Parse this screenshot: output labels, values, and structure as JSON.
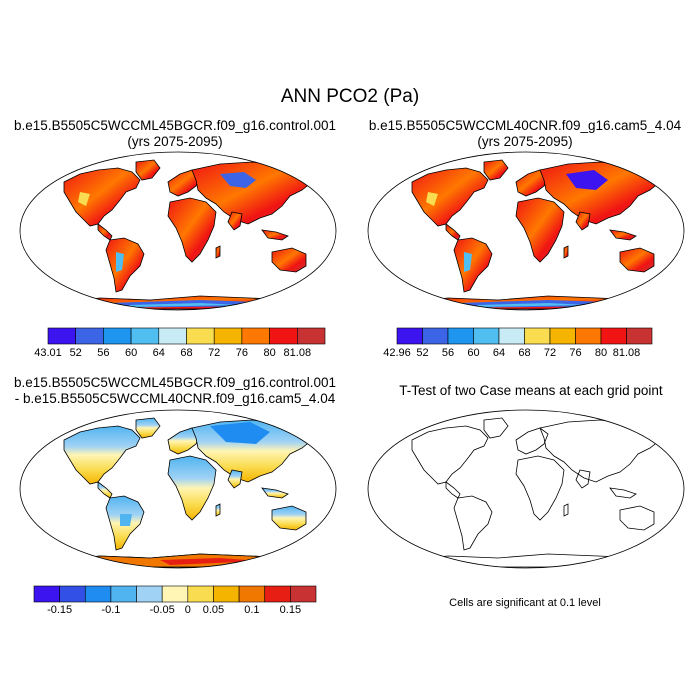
{
  "title": "ANN PCO2 (Pa)",
  "panels": [
    {
      "id": "case1",
      "title_line1": "b.e15.B5505C5WCCML45BGCR.f09_g16.control.001",
      "title_line2": "(yrs 2075-2095)",
      "colorbar": {
        "colors": [
          "#3c14f0",
          "#3c64e6",
          "#1e96f0",
          "#50bef0",
          "#c8ebf5",
          "#fadc50",
          "#f5b400",
          "#ff7800",
          "#f01414",
          "#c83232"
        ],
        "labels": [
          "43.01",
          "52",
          "56",
          "60",
          "64",
          "68",
          "72",
          "76",
          "80",
          "81.08"
        ]
      }
    },
    {
      "id": "case2",
      "title_line1": "b.e15.B5505C5WCCML40CNR.f09_g16.cam5_4.04",
      "title_line2": "(yrs 2075-2095)",
      "colorbar": {
        "colors": [
          "#3c14f0",
          "#3c64e6",
          "#1e96f0",
          "#50bef0",
          "#c8ebf5",
          "#fadc50",
          "#f5b400",
          "#ff7800",
          "#f01414",
          "#c83232"
        ],
        "labels": [
          "42.96",
          "52",
          "56",
          "60",
          "64",
          "68",
          "72",
          "76",
          "80",
          "81.08"
        ]
      }
    },
    {
      "id": "diff",
      "title_line1": "b.e15.B5505C5WCCML45BGCR.f09_g16.control.001",
      "title_line2": "- b.e15.B5505C5WCCML40CNR.f09_g16.cam5_4.04",
      "colorbar": {
        "colors": [
          "#3c14f0",
          "#3250e6",
          "#1e8cf0",
          "#50b4f0",
          "#a0d2f5",
          "#fff5b4",
          "#fadc50",
          "#f5b400",
          "#f07800",
          "#e61e14",
          "#c83232"
        ],
        "labels": [
          "-0.15",
          "-0.1",
          "-0.05",
          "0",
          "0.05",
          "0.1",
          "0.15"
        ]
      }
    },
    {
      "id": "ttest",
      "title_line1": "T-Test of two Case means at each grid point",
      "note": "Cells are significant at 0.1 level"
    }
  ]
}
